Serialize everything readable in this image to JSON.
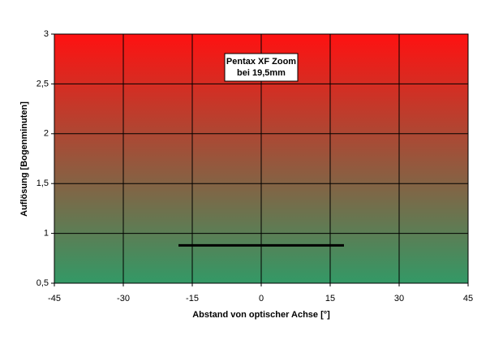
{
  "chart_data": {
    "type": "line",
    "x_label": "Abstand von optischer Achse [°]",
    "y_label": "Auflösung [Bogenminuten]",
    "annotation": [
      "Pentax XF Zoom",
      "bei 19,5mm"
    ],
    "x": [
      -18,
      18
    ],
    "series": [
      {
        "color": "#000000",
        "values": [
          0.88,
          0.88
        ]
      }
    ],
    "xlim": [
      -45,
      45
    ],
    "xticks": [
      -45,
      -30,
      -15,
      0,
      15,
      30,
      45
    ],
    "ylim": [
      0.5,
      3
    ],
    "yticks": [
      {
        "value": 0.5,
        "label": "0,5"
      },
      1,
      {
        "value": 1.5,
        "label": "1,5"
      },
      2,
      {
        "value": 2.5,
        "label": "2,5"
      },
      3
    ],
    "grid": true,
    "background_gradient": [
      "#ff1111",
      "#339966"
    ]
  }
}
